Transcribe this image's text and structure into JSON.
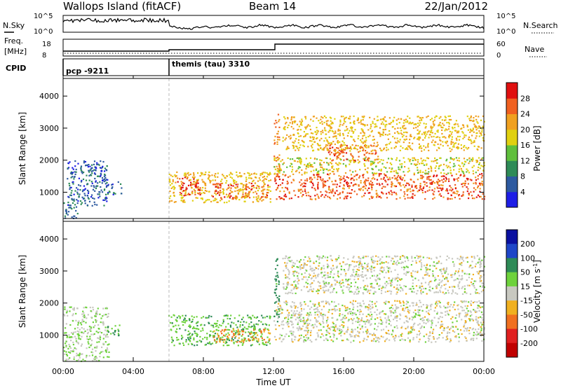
{
  "header": {
    "station": "Wallops Island (fitACF)",
    "beam": "Beam 14",
    "date": "22/Jan/2012"
  },
  "noise_panel": {
    "left_label": "N.Sky",
    "right_label": "N.Search",
    "left_ticks": [
      "10^5",
      "10^0"
    ],
    "right_ticks": [
      "10^5",
      "10^0"
    ]
  },
  "freq_panel": {
    "left_label": "Freq.",
    "left_unit": "[MHz]",
    "left_ticks": [
      "18",
      "8"
    ],
    "right_label": "Nave",
    "right_ticks": [
      "60",
      "0"
    ]
  },
  "cpid_panel": {
    "label": "CPID",
    "programs": [
      {
        "start_hour": 0,
        "name": "pcp -9211"
      },
      {
        "start_hour": 6,
        "name": "themis (tau) 3310"
      }
    ]
  },
  "colors": {
    "power_scale": [
      "#1e1ee6",
      "#2d5aa0",
      "#2e8b57",
      "#5fbf3c",
      "#e0d010",
      "#f0a020",
      "#f06020",
      "#e01010"
    ],
    "velocity_scale": [
      "#0a10a0",
      "#1e46c8",
      "#2e8b57",
      "#6ed23c",
      "#c8c8c0",
      "#f0b020",
      "#f07020",
      "#e02020",
      "#c00000"
    ],
    "ground_scatter": "#c8c8c0",
    "cpid_marker": "#999999"
  },
  "chart_data": [
    {
      "type": "heatmap",
      "name": "power",
      "xlabel": "",
      "ylabel": "Slant Range [km]",
      "xlim": [
        0,
        24
      ],
      "ylim": [
        180,
        4550
      ],
      "yticks": [
        1000,
        2000,
        3000,
        4000
      ],
      "colorbar": {
        "label": "Power [dB]",
        "ticks": [
          4,
          8,
          12,
          16,
          20,
          24,
          28
        ],
        "range": [
          0,
          32
        ]
      },
      "regions": [
        {
          "x": [
            0.0,
            0.8
          ],
          "y": [
            200,
            800
          ],
          "value": 8
        },
        {
          "x": [
            0.2,
            2.5
          ],
          "y": [
            600,
            2000
          ],
          "value": 6
        },
        {
          "x": [
            1.1,
            2.2
          ],
          "y": [
            1500,
            1900
          ],
          "value": 6
        },
        {
          "x": [
            2.5,
            3.3
          ],
          "y": [
            950,
            1350
          ],
          "value": 7
        },
        {
          "x": [
            6.0,
            11.8
          ],
          "y": [
            700,
            1650
          ],
          "value": 20
        },
        {
          "x": [
            6.5,
            7.8
          ],
          "y": [
            900,
            1500
          ],
          "value": 28
        },
        {
          "x": [
            8.5,
            10.0
          ],
          "y": [
            800,
            1300
          ],
          "value": 27
        },
        {
          "x": [
            10.2,
            11.7
          ],
          "y": [
            850,
            1300
          ],
          "value": 26
        },
        {
          "x": [
            12.0,
            12.3
          ],
          "y": [
            1400,
            3500
          ],
          "value": 24
        },
        {
          "x": [
            12.0,
            24.0
          ],
          "y": [
            800,
            1600
          ],
          "value": 26
        },
        {
          "x": [
            12.0,
            24.0
          ],
          "y": [
            1600,
            2100
          ],
          "value": 18
        },
        {
          "x": [
            12.5,
            24.0
          ],
          "y": [
            2300,
            3400
          ],
          "value": 20
        },
        {
          "x": [
            15.0,
            18.0
          ],
          "y": [
            2000,
            2500
          ],
          "value": 25
        }
      ]
    },
    {
      "type": "heatmap",
      "name": "velocity",
      "xlabel": "Time UT",
      "ylabel": "Slant Range [km]",
      "xlim": [
        0,
        24
      ],
      "ylim": [
        180,
        4550
      ],
      "yticks": [
        1000,
        2000,
        3000,
        4000
      ],
      "xticks": [
        "00:00",
        "04:00",
        "08:00",
        "12:00",
        "16:00",
        "20:00",
        "00:00"
      ],
      "xtick_hours": [
        0,
        4,
        8,
        12,
        16,
        20,
        24
      ],
      "colorbar": {
        "label": "Velocity [m s^-1]",
        "ticks": [
          200,
          100,
          50,
          15,
          -15,
          -50,
          -100,
          -200
        ]
      },
      "regions": [
        {
          "x": [
            0.0,
            2.6
          ],
          "y": [
            200,
            1900
          ],
          "value": 15
        },
        {
          "x": [
            2.5,
            3.2
          ],
          "y": [
            950,
            1350
          ],
          "value": 60
        },
        {
          "x": [
            6.0,
            11.8
          ],
          "y": [
            700,
            1650
          ],
          "value": 40
        },
        {
          "x": [
            8.5,
            11.8
          ],
          "y": [
            800,
            1200
          ],
          "value": -60
        },
        {
          "x": [
            12.0,
            24.0
          ],
          "y": [
            800,
            2100
          ],
          "value": 0
        },
        {
          "x": [
            12.5,
            24.0
          ],
          "y": [
            2300,
            3500
          ],
          "value": 0
        },
        {
          "x": [
            12.0,
            12.3
          ],
          "y": [
            1400,
            3500
          ],
          "value": 70
        }
      ]
    }
  ]
}
